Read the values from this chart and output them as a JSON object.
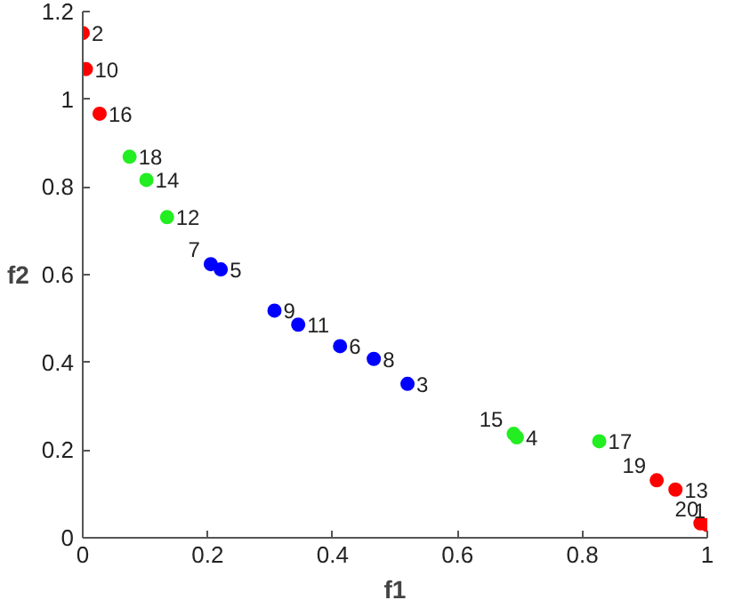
{
  "chart_data": {
    "type": "scatter",
    "xlabel": "f1",
    "ylabel": "f2",
    "xlim": [
      0,
      1
    ],
    "ylim": [
      0,
      1.2
    ],
    "xticks": [
      0,
      0.2,
      0.4,
      0.6,
      0.8,
      1
    ],
    "yticks": [
      0,
      0.2,
      0.4,
      0.6,
      0.8,
      1,
      1.2
    ],
    "grid": false,
    "marker": "circle",
    "series": [
      {
        "color": "#ff0000",
        "x": [
          0,
          0.005,
          0.027,
          0.919,
          0.949,
          0.989,
          1.0
        ],
        "values": [
          1.151,
          1.069,
          0.967,
          0.131,
          0.11,
          0.033,
          0.029
        ]
      },
      {
        "color": "#22ee22",
        "x": [
          0.075,
          0.102,
          0.135,
          0.69,
          0.695,
          0.827
        ],
        "values": [
          0.869,
          0.816,
          0.731,
          0.237,
          0.229,
          0.22
        ]
      },
      {
        "color": "#0000ff",
        "x": [
          0.205,
          0.221,
          0.307,
          0.345,
          0.412,
          0.466,
          0.52
        ],
        "values": [
          0.624,
          0.612,
          0.518,
          0.486,
          0.437,
          0.408,
          0.351
        ]
      }
    ],
    "annotations": [
      {
        "text": "2",
        "x": 0,
        "y": 1.151
      },
      {
        "text": "10",
        "x": 0.005,
        "y": 1.069
      },
      {
        "text": "16",
        "x": 0.027,
        "y": 0.967
      },
      {
        "text": "18",
        "x": 0.075,
        "y": 0.869
      },
      {
        "text": "14",
        "x": 0.102,
        "y": 0.816
      },
      {
        "text": "12",
        "x": 0.135,
        "y": 0.731
      },
      {
        "text": "7",
        "x": 0.205,
        "y": 0.624
      },
      {
        "text": "5",
        "x": 0.221,
        "y": 0.612
      },
      {
        "text": "9",
        "x": 0.307,
        "y": 0.518
      },
      {
        "text": "11",
        "x": 0.345,
        "y": 0.486
      },
      {
        "text": "6",
        "x": 0.412,
        "y": 0.437
      },
      {
        "text": "8",
        "x": 0.466,
        "y": 0.408
      },
      {
        "text": "3",
        "x": 0.52,
        "y": 0.351
      },
      {
        "text": "15",
        "x": 0.69,
        "y": 0.237
      },
      {
        "text": "4",
        "x": 0.695,
        "y": 0.229
      },
      {
        "text": "17",
        "x": 0.827,
        "y": 0.22
      },
      {
        "text": "19",
        "x": 0.919,
        "y": 0.131
      },
      {
        "text": "13",
        "x": 0.949,
        "y": 0.11
      },
      {
        "text": "20",
        "x": 0.989,
        "y": 0.033
      },
      {
        "text": "1",
        "x": 1.0,
        "y": 0.029
      }
    ]
  }
}
